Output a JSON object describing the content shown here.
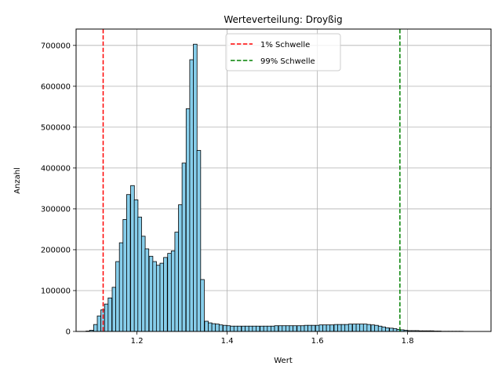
{
  "chart_data": {
    "type": "bar",
    "title": "Werteverteilung: Droyßig",
    "xlabel": "Wert",
    "ylabel": "Anzahl",
    "xlim": [
      1.065,
      1.985
    ],
    "ylim": [
      0,
      740000
    ],
    "xticks": [
      1.2,
      1.4,
      1.6,
      1.8
    ],
    "xtick_labels": [
      "1.2",
      "1.4",
      "1.6",
      "1.8"
    ],
    "yticks": [
      0,
      100000,
      200000,
      300000,
      400000,
      500000,
      600000,
      700000
    ],
    "ytick_labels": [
      "0",
      "100000",
      "200000",
      "300000",
      "400000",
      "500000",
      "600000",
      "700000"
    ],
    "grid": true,
    "legend_position": "top-center",
    "bar_color": "#87ceeb",
    "bar_edge_color": "#000000",
    "bin_width": 0.0082,
    "bins_start": [
      1.087,
      1.095,
      1.104,
      1.112,
      1.12,
      1.128,
      1.136,
      1.145,
      1.153,
      1.161,
      1.169,
      1.177,
      1.186,
      1.194,
      1.202,
      1.21,
      1.218,
      1.227,
      1.235,
      1.243,
      1.251,
      1.259,
      1.268,
      1.276,
      1.284,
      1.292,
      1.3,
      1.309,
      1.317,
      1.325,
      1.333,
      1.341,
      1.35,
      1.358,
      1.366,
      1.374,
      1.382,
      1.391,
      1.399,
      1.407,
      1.415,
      1.423,
      1.432,
      1.44,
      1.448,
      1.456,
      1.464,
      1.473,
      1.481,
      1.489,
      1.497,
      1.505,
      1.514,
      1.522,
      1.53,
      1.538,
      1.546,
      1.555,
      1.563,
      1.571,
      1.579,
      1.587,
      1.596,
      1.604,
      1.612,
      1.62,
      1.628,
      1.637,
      1.645,
      1.653,
      1.661,
      1.669,
      1.678,
      1.686,
      1.694,
      1.702,
      1.71,
      1.719,
      1.727,
      1.735,
      1.743,
      1.751,
      1.76,
      1.768,
      1.776,
      1.784,
      1.792,
      1.801,
      1.809,
      1.817,
      1.825,
      1.833,
      1.842,
      1.85,
      1.858,
      1.866,
      1.874,
      1.883,
      1.891,
      1.899,
      1.907,
      1.915
    ],
    "values": [
      1000,
      3000,
      17000,
      38000,
      53000,
      67000,
      82000,
      108000,
      171000,
      217000,
      274000,
      335000,
      357000,
      322000,
      280000,
      233000,
      202000,
      184000,
      171000,
      162000,
      167000,
      181000,
      191000,
      197000,
      243000,
      310000,
      412000,
      545000,
      665000,
      703000,
      443000,
      127000,
      25000,
      21000,
      19000,
      18000,
      16000,
      15000,
      14000,
      13000,
      13000,
      13000,
      13000,
      13000,
      13000,
      13000,
      13000,
      13000,
      13000,
      13000,
      13000,
      14000,
      14000,
      14000,
      14000,
      14000,
      14000,
      14000,
      14000,
      15000,
      15000,
      15000,
      15000,
      16000,
      16000,
      16000,
      16000,
      17000,
      17000,
      17000,
      17000,
      18000,
      18000,
      18000,
      18000,
      18000,
      17000,
      16000,
      15000,
      13000,
      11000,
      9000,
      8000,
      7000,
      5000,
      4000,
      3000,
      2000,
      2000,
      2000,
      1500,
      1500,
      1500,
      1500,
      1000,
      1000,
      500,
      500,
      500,
      500,
      500,
      500
    ],
    "thresholds": [
      {
        "name": "1% Schwelle",
        "x": 1.125,
        "color": "#ff0000"
      },
      {
        "name": "99% Schwelle",
        "x": 1.783,
        "color": "#008000"
      }
    ]
  }
}
